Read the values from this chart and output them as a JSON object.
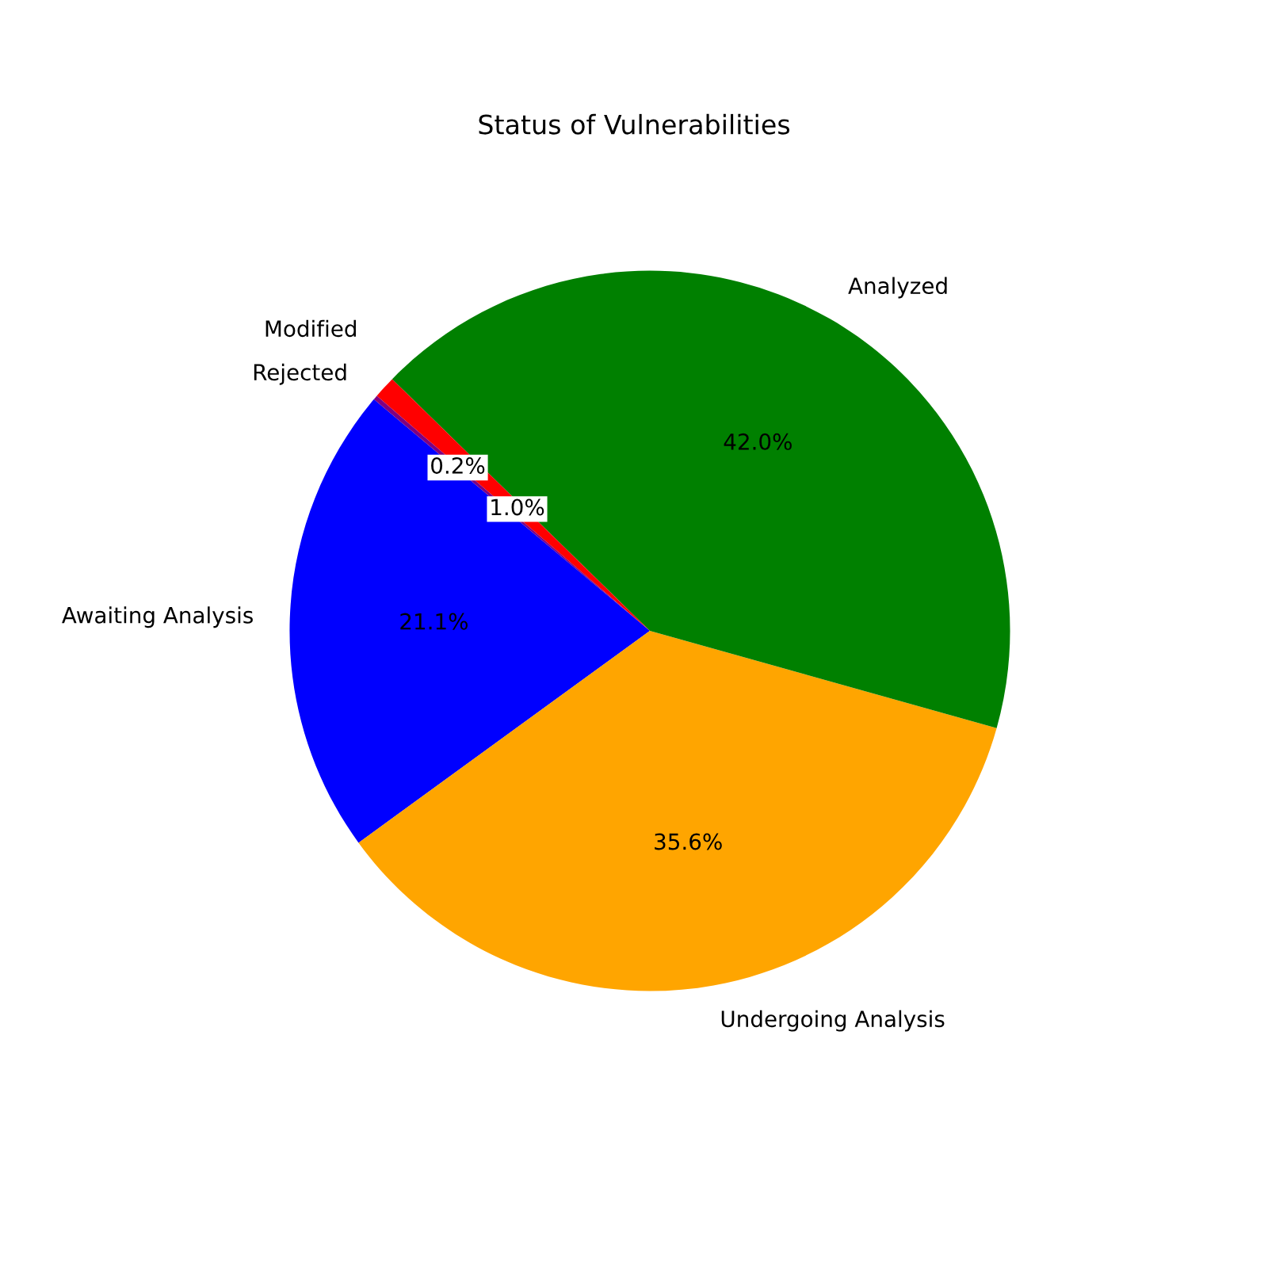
{
  "chart_data": {
    "type": "pie",
    "title": "Status of Vulnerabilities",
    "categories": [
      "Awaiting Analysis",
      "Undergoing Analysis",
      "Analyzed",
      "Modified",
      "Rejected"
    ],
    "values": [
      21.1,
      35.6,
      42.0,
      1.0,
      0.2
    ],
    "colors": [
      "#0000ff",
      "#ffa500",
      "#008000",
      "#ff0000",
      "#800080"
    ],
    "value_labels": [
      "21.1%",
      "35.6%",
      "42.0%",
      "1.0%",
      "0.2%"
    ]
  }
}
